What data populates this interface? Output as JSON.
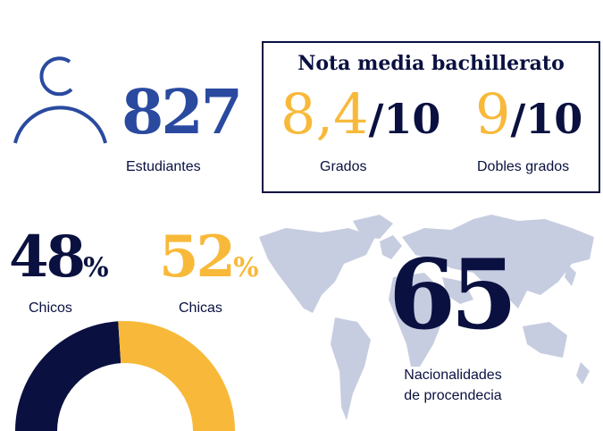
{
  "colors": {
    "navy": "#0a1140",
    "blue": "#2a4aa0",
    "yellow": "#f8b93a",
    "map": "#c7cde0"
  },
  "students": {
    "icon": "person-icon",
    "value": "827",
    "label": "Estudiantes"
  },
  "grades": {
    "title": "Nota media bachillerato",
    "items": [
      {
        "value": "8,4",
        "scale": "/10",
        "label": "Grados"
      },
      {
        "value": "9",
        "scale": "/10",
        "label": "Dobles grados"
      }
    ]
  },
  "gender": {
    "male": {
      "value": "48",
      "unit": "%",
      "label": "Chicos"
    },
    "female": {
      "value": "52",
      "unit": "%",
      "label": "Chicas"
    }
  },
  "nationalities": {
    "icon": "world-map-icon",
    "value": "65",
    "label_line1": "Nacionalidades",
    "label_line2": "de procendecia"
  },
  "chart_data": {
    "type": "pie",
    "variant": "half-donut",
    "categories": [
      "Chicos",
      "Chicas"
    ],
    "values": [
      48,
      52
    ],
    "colors": [
      "#0a1140",
      "#f8b93a"
    ]
  }
}
